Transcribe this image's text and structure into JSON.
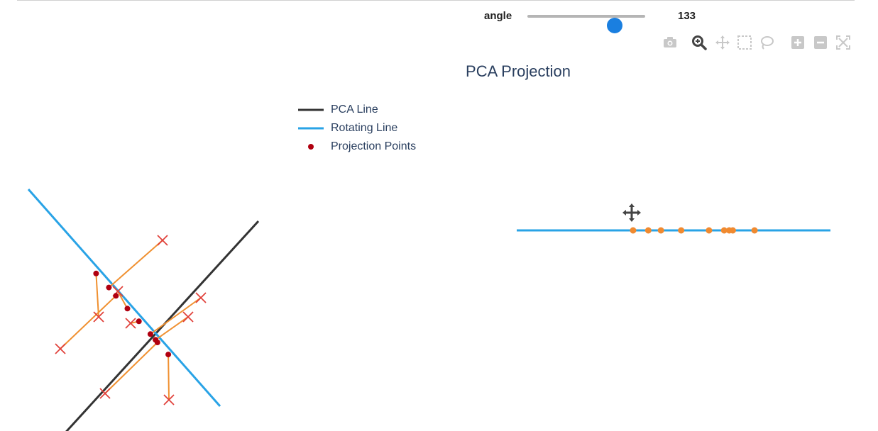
{
  "slider": {
    "label": "angle",
    "value": 133,
    "min": 0,
    "max": 180
  },
  "modebar": {
    "buttons": [
      {
        "name": "camera-icon",
        "active": false
      },
      {
        "name": "zoom-icon",
        "active": true
      },
      {
        "name": "pan-icon",
        "active": false
      },
      {
        "name": "box-select-icon",
        "active": false
      },
      {
        "name": "lasso-icon",
        "active": false
      },
      {
        "name": "zoom-in-icon",
        "active": false
      },
      {
        "name": "zoom-out-icon",
        "active": false
      },
      {
        "name": "autoscale-icon",
        "active": false
      }
    ]
  },
  "colors": {
    "pca_line": "#333333",
    "rotating_line": "#29a3e6",
    "projection_points": "#b00010",
    "data_points": "#e0403a",
    "projection_segments": "#f09030",
    "projected_1d": "#f08a30"
  },
  "chart_data": [
    {
      "type": "scatter",
      "title": "PCA Projection",
      "legend": [
        "PCA Line",
        "Rotating Line",
        "Projection Points"
      ],
      "legend_placement": "top-right",
      "xlabel": "",
      "ylabel": "",
      "grid": false,
      "axes_visible": false,
      "xlim": [
        -3.6,
        3.0
      ],
      "ylim": [
        -3.2,
        2.8
      ],
      "rotation_angle_deg": 133,
      "pca_line": {
        "x": [
          -2.5,
          0.6
        ],
        "y": [
          -2.2,
          1.2
        ]
      },
      "rotating_line": {
        "x": [
          -3.0,
          0.0
        ],
        "y": [
          1.7,
          -1.7
        ]
      },
      "data_points": {
        "x": [
          -0.9,
          -1.9,
          -2.5,
          -1.6,
          -1.4,
          -0.3,
          -0.5,
          -1.8,
          -0.8
        ],
        "y": [
          0.9,
          -0.3,
          -0.8,
          0.1,
          -0.4,
          0.0,
          -0.3,
          -1.5,
          -1.6
        ]
      },
      "projection_points": {
        "x": [
          -1.74,
          -1.94,
          -1.63,
          -1.45,
          -1.27,
          -1.09,
          -1.01,
          -0.98,
          -0.81
        ],
        "y": [
          0.16,
          0.38,
          0.03,
          -0.17,
          -0.37,
          -0.57,
          -0.66,
          -0.7,
          -0.89
        ]
      }
    },
    {
      "type": "scatter",
      "title": "",
      "axes_visible": false,
      "xlim": [
        -3.0,
        3.2
      ],
      "line": {
        "x": [
          -3.0,
          3.2
        ],
        "y": [
          0,
          0
        ]
      },
      "projected_points": {
        "x": [
          -0.7,
          -0.4,
          -0.15,
          0.25,
          0.8,
          1.1,
          1.2,
          1.27,
          1.7
        ],
        "y": [
          0,
          0,
          0,
          0,
          0,
          0,
          0,
          0,
          0
        ]
      }
    }
  ]
}
